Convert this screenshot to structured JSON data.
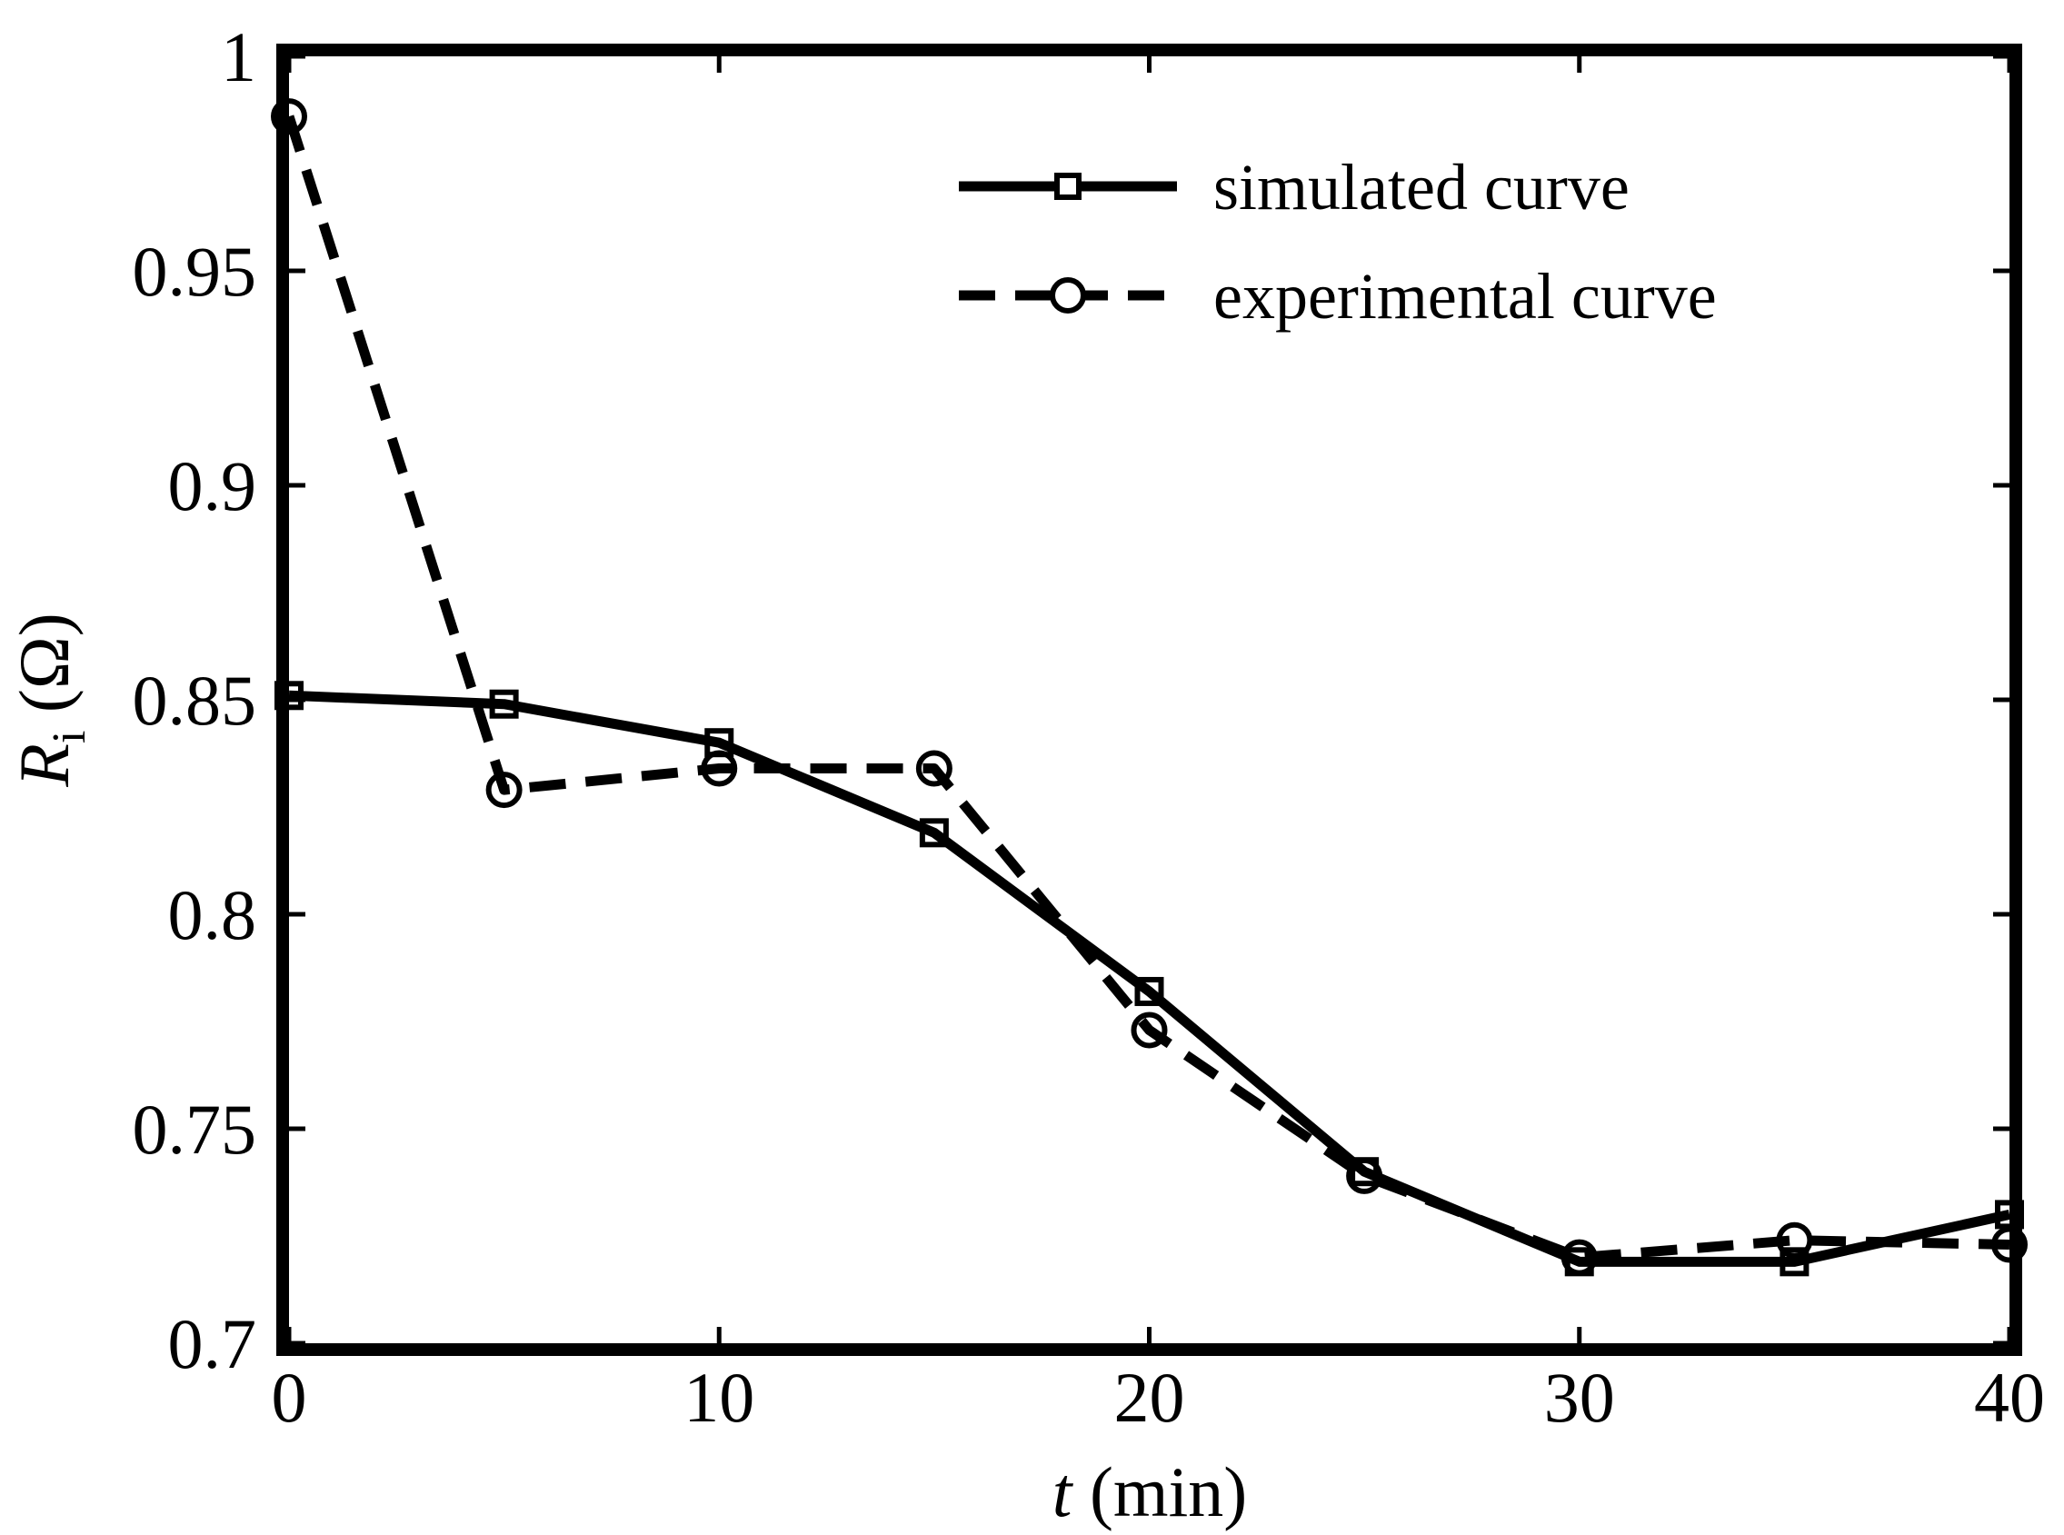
{
  "chart_data": {
    "type": "line",
    "title": "",
    "x": [
      0,
      5,
      10,
      15,
      20,
      25,
      30,
      35,
      40
    ],
    "xlim": [
      0,
      40
    ],
    "ylim": [
      0.7,
      1.0
    ],
    "xticks": [
      "0",
      "10",
      "20",
      "30",
      "40"
    ],
    "yticks": [
      "0.7",
      "0.75",
      "0.8",
      "0.85",
      "0.9",
      "0.95",
      "1"
    ],
    "xlabel": {
      "var": "t",
      "unit": "(min)"
    },
    "ylabel": {
      "var": "R",
      "sub": "i",
      "unit": "(Ω)"
    },
    "legend_position": "top-right",
    "series": [
      {
        "name": "simulated curve",
        "marker": "square",
        "linestyle": "solid",
        "color": "#000000",
        "values": [
          0.851,
          0.849,
          0.84,
          0.819,
          0.782,
          0.74,
          0.719,
          0.719,
          0.73
        ]
      },
      {
        "name": "experimental curve",
        "marker": "circle",
        "linestyle": "dashed",
        "color": "#000000",
        "values": [
          0.986,
          0.829,
          0.834,
          0.834,
          0.773,
          0.739,
          0.72,
          0.724,
          0.723
        ]
      }
    ]
  }
}
